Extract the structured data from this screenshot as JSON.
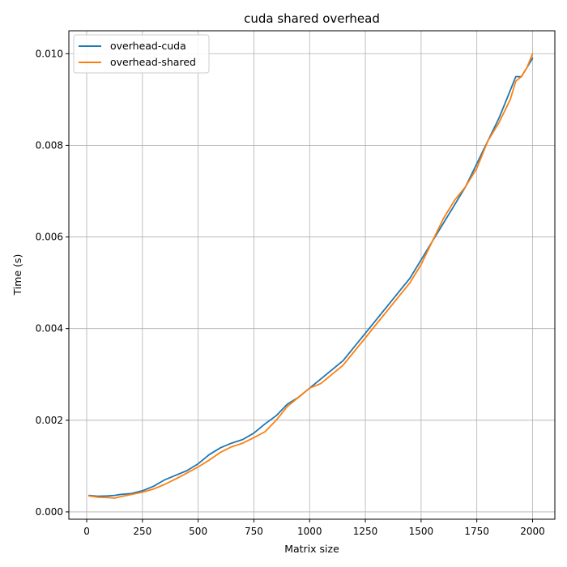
{
  "chart_data": {
    "type": "line",
    "title": "cuda shared overhead",
    "xlabel": "Matrix size",
    "ylabel": "Time (s)",
    "xlim": [
      -80,
      2100
    ],
    "ylim": [
      -0.00016,
      0.0105
    ],
    "xticks": [
      0,
      250,
      500,
      750,
      1000,
      1250,
      1500,
      1750,
      2000
    ],
    "yticks": [
      0.0,
      0.002,
      0.004,
      0.006,
      0.008,
      0.01
    ],
    "ytick_labels": [
      "0.000",
      "0.002",
      "0.004",
      "0.006",
      "0.008",
      "0.010"
    ],
    "grid": true,
    "legend_position": "top-left",
    "x": [
      10,
      50,
      100,
      125,
      150,
      200,
      250,
      300,
      350,
      400,
      450,
      500,
      550,
      600,
      650,
      700,
      750,
      800,
      850,
      900,
      950,
      1000,
      1050,
      1100,
      1150,
      1200,
      1250,
      1300,
      1350,
      1400,
      1450,
      1500,
      1550,
      1600,
      1650,
      1700,
      1750,
      1800,
      1850,
      1900,
      1925,
      1950,
      1975,
      2000
    ],
    "series": [
      {
        "name": "overhead-cuda",
        "color": "#1f77b4",
        "values": [
          0.00036,
          0.00034,
          0.00035,
          0.00036,
          0.00038,
          0.0004,
          0.00046,
          0.00056,
          0.0007,
          0.0008,
          0.0009,
          0.00105,
          0.00125,
          0.0014,
          0.0015,
          0.00158,
          0.00172,
          0.00192,
          0.0021,
          0.00235,
          0.0025,
          0.0027,
          0.0029,
          0.0031,
          0.0033,
          0.0036,
          0.0039,
          0.0042,
          0.0045,
          0.0048,
          0.0051,
          0.0055,
          0.0059,
          0.0063,
          0.0067,
          0.0071,
          0.0076,
          0.0081,
          0.0086,
          0.0092,
          0.0095,
          0.0095,
          0.0097,
          0.0099
        ]
      },
      {
        "name": "overhead-shared",
        "color": "#ff7f0e",
        "values": [
          0.00035,
          0.00032,
          0.00031,
          0.0003,
          0.00033,
          0.00038,
          0.00043,
          0.0005,
          0.0006,
          0.00072,
          0.00085,
          0.00098,
          0.00113,
          0.0013,
          0.00142,
          0.0015,
          0.00162,
          0.00175,
          0.002,
          0.0023,
          0.0025,
          0.0027,
          0.0028,
          0.003,
          0.0032,
          0.0035,
          0.0038,
          0.0041,
          0.0044,
          0.0047,
          0.005,
          0.0054,
          0.0059,
          0.0064,
          0.0068,
          0.0071,
          0.0075,
          0.0081,
          0.0085,
          0.009,
          0.0094,
          0.0095,
          0.0097,
          0.01
        ]
      }
    ]
  }
}
